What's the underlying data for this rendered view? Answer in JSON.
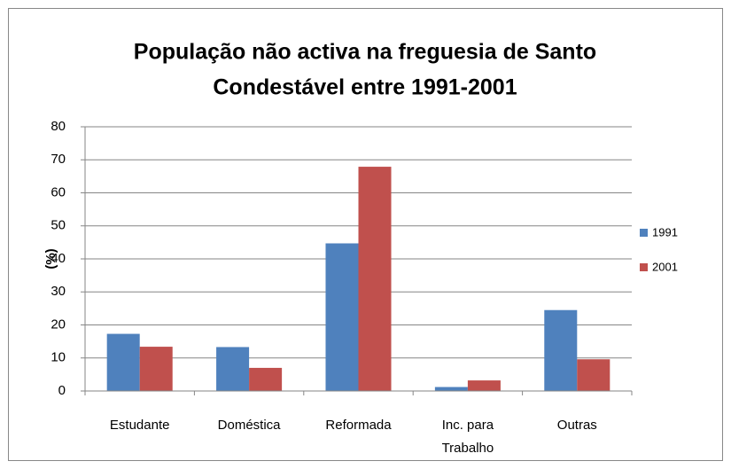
{
  "chart_data": {
    "type": "bar",
    "title": [
      "População  não activa na freguesia de Santo",
      "Condestável entre  1991-2001"
    ],
    "y_label": "(%)",
    "categories": [
      "Estudante",
      "Doméstica",
      "Reformada",
      "Inc. para Trabalho",
      "Outras"
    ],
    "series": [
      {
        "name": "1991",
        "color": "#4f81bd",
        "values": [
          17.3,
          13.3,
          44.7,
          1.2,
          24.5
        ]
      },
      {
        "name": "2001",
        "color": "#c0504d",
        "values": [
          13.4,
          7.0,
          67.9,
          3.2,
          9.6
        ]
      }
    ],
    "ylim": [
      0,
      80
    ],
    "yticks": [
      0,
      10,
      20,
      30,
      40,
      50,
      60,
      70,
      80
    ],
    "grid": true,
    "legend": "right"
  }
}
